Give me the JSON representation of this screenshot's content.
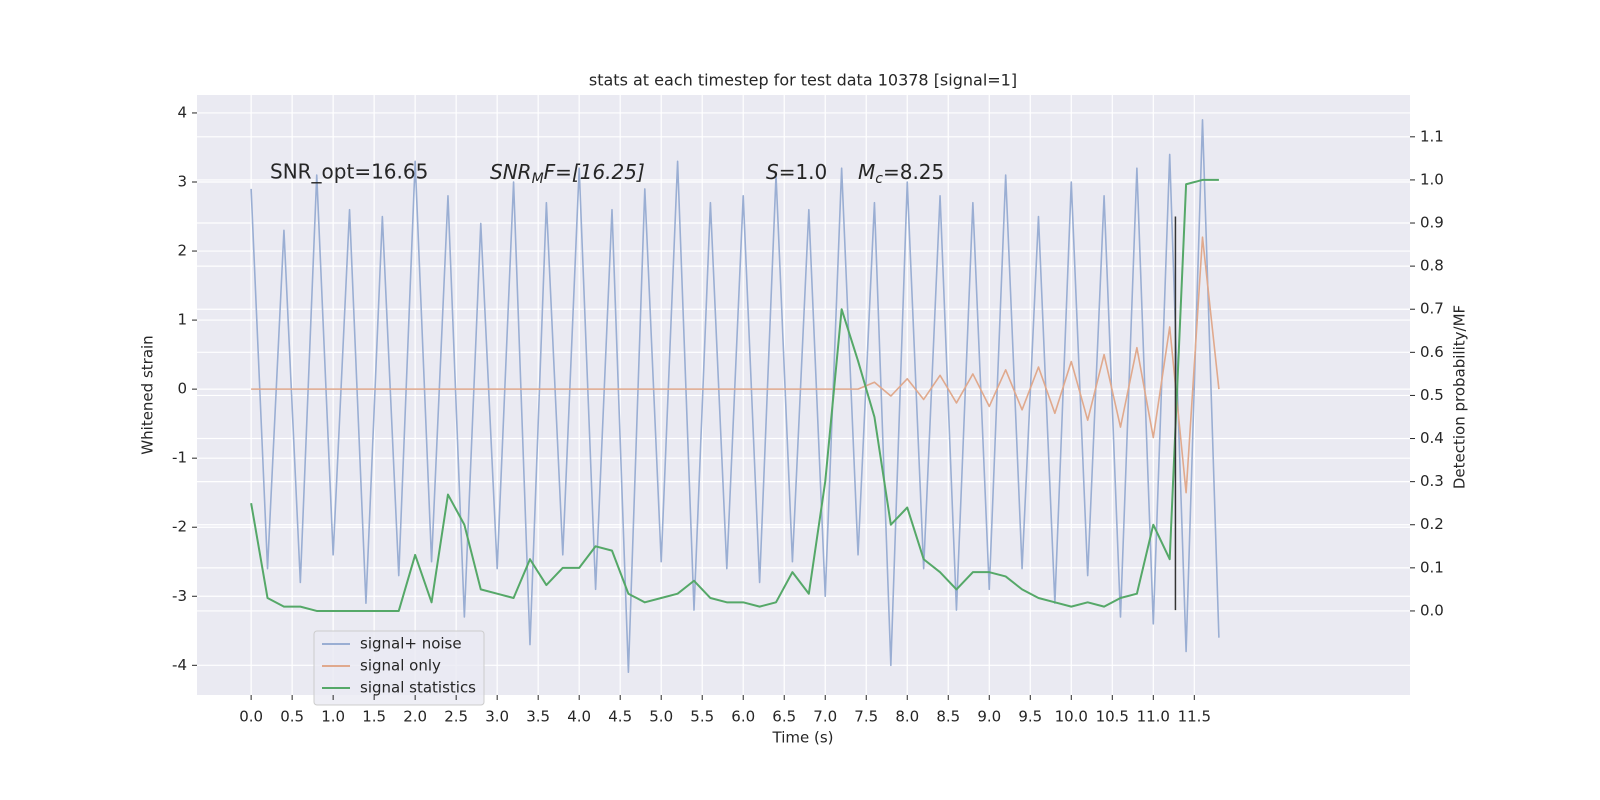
{
  "chart_data": {
    "type": "line",
    "title": "stats at each timestep for test data 10378 [signal=1]",
    "xlabel": "Time (s)",
    "ylabel": "Whitened strain",
    "y2label": "Detection probability/MF",
    "grid": true,
    "legend": "lower left",
    "xlim": [
      -0.66,
      14.13
    ],
    "ylim": [
      -4.43,
      4.26
    ],
    "y2lim": [
      -0.195,
      1.197
    ],
    "xticks": [
      {
        "value": 0,
        "label": "0.0"
      },
      0.5,
      {
        "value": 1,
        "label": "1.0"
      },
      1.5,
      {
        "value": 2,
        "label": "2.0"
      },
      2.5,
      {
        "value": 3,
        "label": "3.0"
      },
      3.5,
      {
        "value": 4,
        "label": "4.0"
      },
      4.5,
      {
        "value": 5,
        "label": "5.0"
      },
      5.5,
      {
        "value": 6,
        "label": "6.0"
      },
      6.5,
      {
        "value": 7,
        "label": "7.0"
      },
      7.5,
      {
        "value": 8,
        "label": "8.0"
      },
      8.5,
      {
        "value": 9,
        "label": "9.0"
      },
      9.5,
      {
        "value": 10,
        "label": "10.0"
      },
      10.5,
      {
        "value": 11,
        "label": "11.0"
      },
      11.5
    ],
    "yticks": [
      -4,
      -3,
      -2,
      -1,
      0,
      1,
      2,
      3,
      4
    ],
    "y2ticks": [
      {
        "value": 0,
        "label": "0.0"
      },
      0.1,
      0.2,
      0.3,
      0.4,
      0.5,
      0.6,
      0.7,
      0.8,
      0.9,
      {
        "value": 1,
        "label": "1.0"
      },
      1.1
    ],
    "x": [
      0,
      0.2,
      0.4,
      0.6,
      0.8,
      1,
      1.2,
      1.4,
      1.6,
      1.8,
      2,
      2.2,
      2.4,
      2.6,
      2.8,
      3,
      3.2,
      3.4,
      3.6,
      3.8,
      4,
      4.2,
      4.4,
      4.6,
      4.8,
      5,
      5.2,
      5.4,
      5.6,
      5.8,
      6,
      6.2,
      6.4,
      6.6,
      6.8,
      7,
      7.2,
      7.4,
      7.6,
      7.8,
      8,
      8.2,
      8.4,
      8.6,
      8.8,
      9,
      9.2,
      9.4,
      9.6,
      9.8,
      10,
      10.2,
      10.4,
      10.6,
      10.8,
      11,
      11.2,
      11.4,
      11.6,
      11.8
    ],
    "series": [
      {
        "name": "signal+ noise",
        "color": "#9aaed3",
        "axis": "y",
        "values": [
          2.9,
          -2.6,
          2.3,
          -2.8,
          3.1,
          -2.4,
          2.6,
          -3.1,
          2.5,
          -2.7,
          3.3,
          -2.5,
          2.8,
          -3.3,
          2.4,
          -2.6,
          3.0,
          -3.7,
          2.7,
          -2.4,
          3.2,
          -2.9,
          2.6,
          -4.1,
          2.9,
          -2.5,
          3.3,
          -3.2,
          2.7,
          -2.6,
          2.8,
          -2.8,
          3.1,
          -2.5,
          2.6,
          -3.0,
          3.2,
          -2.4,
          2.7,
          -4.0,
          3.0,
          -2.6,
          2.8,
          -3.2,
          2.7,
          -2.9,
          3.1,
          -2.6,
          2.5,
          -3.1,
          3.0,
          -2.7,
          2.8,
          -3.3,
          3.2,
          -3.4,
          3.4,
          -3.8,
          3.9,
          -3.6
        ]
      },
      {
        "name": "signal only",
        "color": "#e0a98d",
        "axis": "y",
        "values": [
          0,
          0,
          0,
          0,
          0,
          0,
          0,
          0,
          0,
          0,
          0,
          0,
          0,
          0,
          0,
          0,
          0,
          0,
          0,
          0,
          0,
          0,
          0,
          0,
          0,
          0,
          0,
          0,
          0,
          0,
          0,
          0,
          0,
          0,
          0,
          0,
          0,
          0,
          0.1,
          -0.1,
          0.15,
          -0.15,
          0.2,
          -0.2,
          0.22,
          -0.25,
          0.28,
          -0.3,
          0.32,
          -0.35,
          0.4,
          -0.45,
          0.5,
          -0.55,
          0.6,
          -0.7,
          0.9,
          -1.5,
          2.2,
          0
        ]
      },
      {
        "name": "signal statistics",
        "color": "#55a868",
        "axis": "y2",
        "values": [
          0.25,
          0.03,
          0.01,
          0.01,
          0,
          0,
          0,
          0,
          0,
          0,
          0.13,
          0.02,
          0.27,
          0.2,
          0.05,
          0.04,
          0.03,
          0.12,
          0.06,
          0.1,
          0.1,
          0.15,
          0.14,
          0.04,
          0.02,
          0.03,
          0.04,
          0.07,
          0.03,
          0.02,
          0.02,
          0.01,
          0.02,
          0.09,
          0.04,
          0.3,
          0.7,
          0.58,
          0.45,
          0.2,
          0.24,
          0.12,
          0.09,
          0.05,
          0.09,
          0.09,
          0.08,
          0.05,
          0.03,
          0.02,
          0.01,
          0.02,
          0.01,
          0.03,
          0.04,
          0.2,
          0.12,
          0.99,
          1.0,
          1.0
        ]
      }
    ],
    "vline": {
      "x": 11.27,
      "ymin": -3.2,
      "ymax": 2.5,
      "color": "#333333"
    },
    "annotations": [
      {
        "text": "SNR_opt=16.65"
      },
      {
        "main": "SNR",
        "sub": "M",
        "rest": "F=[16.25]"
      },
      {
        "main": "S",
        "rest": "=1.0"
      },
      {
        "main": "M",
        "sub": "c",
        "rest": "=8.25"
      }
    ]
  }
}
